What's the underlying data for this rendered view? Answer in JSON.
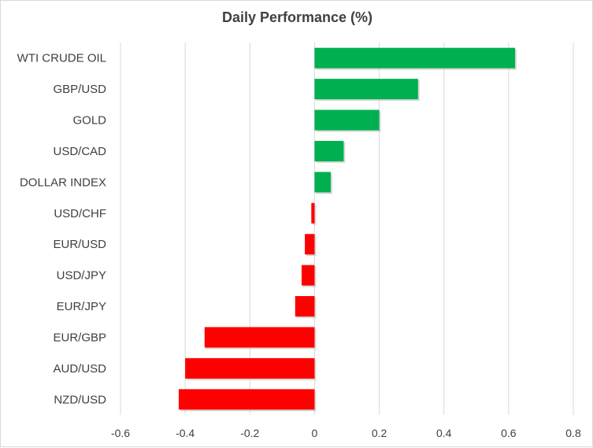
{
  "chart_data": {
    "type": "bar",
    "orientation": "horizontal",
    "title": "Daily Performance (%)",
    "xlabel": "",
    "ylabel": "",
    "categories": [
      "WTI CRUDE OIL",
      "GBP/USD",
      "GOLD",
      "USD/CAD",
      "DOLLAR INDEX",
      "USD/CHF",
      "EUR/USD",
      "USD/JPY",
      "EUR/JPY",
      "EUR/GBP",
      "AUD/USD",
      "NZD/USD"
    ],
    "values": [
      0.62,
      0.32,
      0.2,
      0.09,
      0.05,
      -0.01,
      -0.03,
      -0.04,
      -0.06,
      -0.34,
      -0.4,
      -0.42
    ],
    "xlim": [
      -0.6,
      0.8
    ],
    "xticks": [
      "-0.6",
      "-0.4",
      "-0.2",
      "0",
      "0.2",
      "0.4",
      "0.6",
      "0.8"
    ],
    "grid": "vertical",
    "colors": {
      "positive": "#00b050",
      "negative": "#ff0000"
    }
  }
}
